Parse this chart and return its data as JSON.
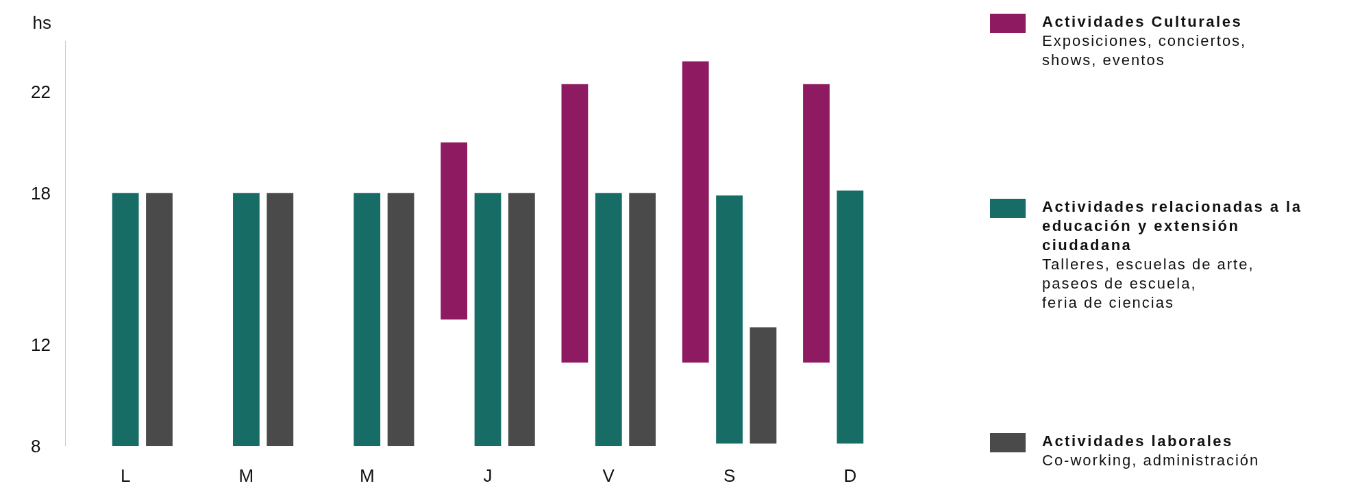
{
  "chart_data": {
    "type": "bar",
    "ylabel": "hs",
    "categories": [
      "L",
      "M",
      "M",
      "J",
      "V",
      "S",
      "D"
    ],
    "series": [
      {
        "name": "Actividades Culturales",
        "color": "#8e1a62",
        "base": [
          null,
          null,
          null,
          13,
          11.3,
          11.3,
          11.3
        ],
        "values": [
          null,
          null,
          null,
          7,
          11,
          11.9,
          11
        ]
      },
      {
        "name": "Actividades relacionadas a la educación y extensión ciudadana",
        "color": "#176c66",
        "base": [
          8,
          8,
          8,
          8,
          8,
          8.1,
          8.1
        ],
        "values": [
          10,
          10,
          10,
          10,
          10,
          9.8,
          10
        ]
      },
      {
        "name": "Actividades laborales",
        "color": "#4a4a4a",
        "base": [
          8,
          8,
          8,
          8,
          8,
          8.1,
          null
        ],
        "values": [
          10,
          10,
          10,
          10,
          10,
          4.6,
          null
        ]
      }
    ],
    "annotations": [
      "Exposiciones, conciertos,\nshows, eventos",
      "Talleres, escuelas de arte,\npaseos de escuela,\nferia de ciencias",
      "Co-working, administración"
    ],
    "ylim": [
      8,
      24
    ],
    "yticks": [
      8,
      12,
      18,
      22
    ],
    "grid": false,
    "legend": "right"
  }
}
